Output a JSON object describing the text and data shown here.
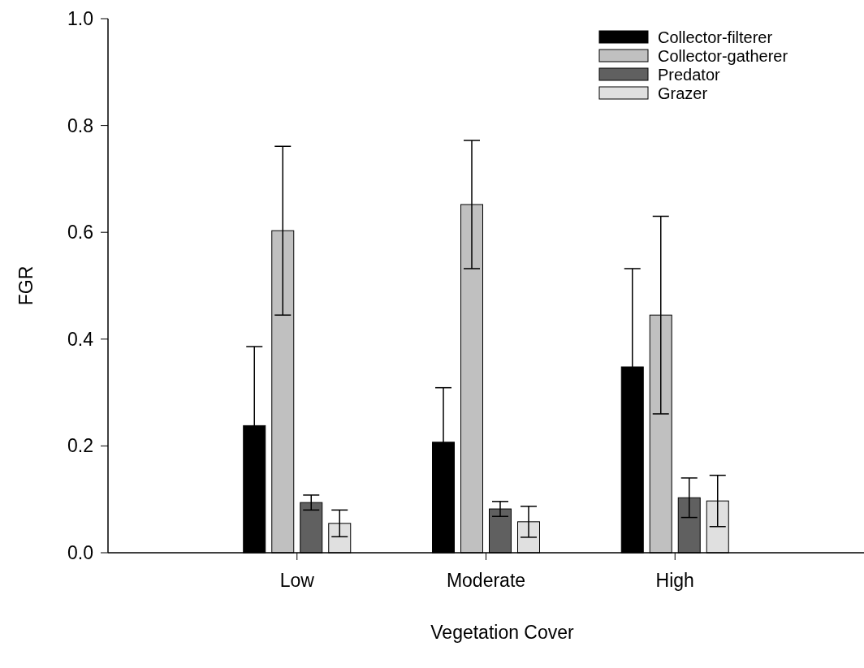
{
  "chart_data": {
    "type": "bar",
    "xlabel": "Vegetation Cover",
    "ylabel": "FGR",
    "categories": [
      "Low",
      "Moderate",
      "High"
    ],
    "series": [
      {
        "name": "Collector-filterer",
        "color": "#000000",
        "values": [
          0.238,
          0.207,
          0.348
        ],
        "errors": [
          0.148,
          0.102,
          0.184
        ]
      },
      {
        "name": "Collector-gatherer",
        "color": "#c0c0c0",
        "values": [
          0.603,
          0.652,
          0.445
        ],
        "errors": [
          0.158,
          0.12,
          0.185
        ]
      },
      {
        "name": "Predator",
        "color": "#606060",
        "values": [
          0.094,
          0.082,
          0.103
        ],
        "errors": [
          0.014,
          0.014,
          0.037
        ]
      },
      {
        "name": "Grazer",
        "color": "#e0e0e0",
        "values": [
          0.055,
          0.058,
          0.097
        ],
        "errors": [
          0.025,
          0.029,
          0.048
        ]
      }
    ],
    "ylim": [
      0,
      1
    ],
    "yticks": [
      {
        "value": 0,
        "label": "0.0"
      },
      {
        "value": 0.2,
        "label": "0.2"
      },
      {
        "value": 0.4,
        "label": "0.4"
      },
      {
        "value": 0.6,
        "label": "0.6"
      },
      {
        "value": 0.8,
        "label": "0.8"
      },
      {
        "value": 1,
        "label": "1.0"
      }
    ],
    "legend": "top right"
  }
}
